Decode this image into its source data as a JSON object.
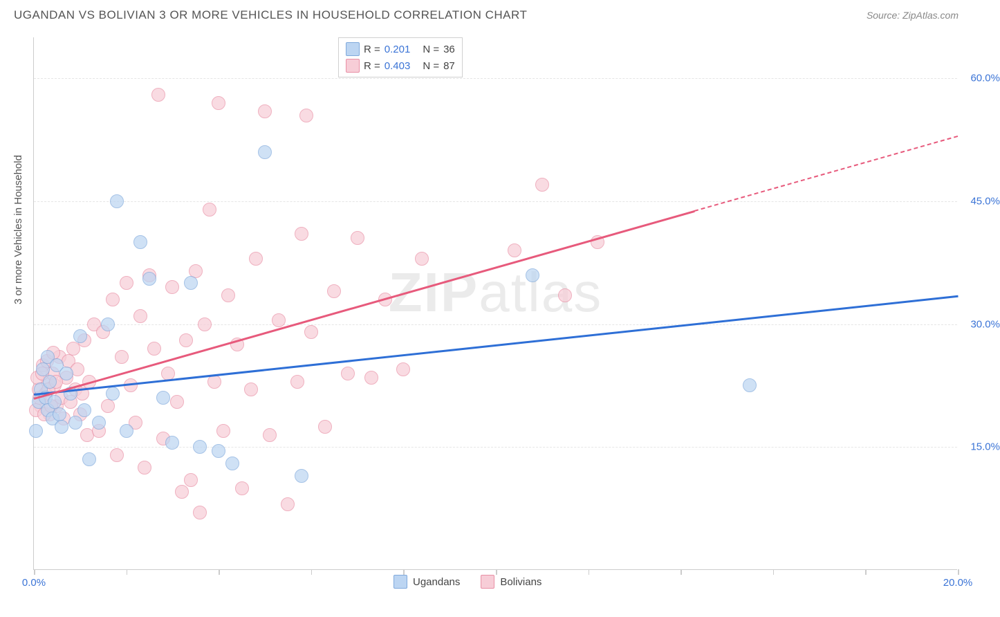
{
  "title": "UGANDAN VS BOLIVIAN 3 OR MORE VEHICLES IN HOUSEHOLD CORRELATION CHART",
  "source": "Source: ZipAtlas.com",
  "ylabel": "3 or more Vehicles in Household",
  "watermark": {
    "a": "ZIP",
    "b": "atlas"
  },
  "chart": {
    "type": "scatter",
    "xlim": [
      0,
      20
    ],
    "ylim": [
      0,
      65
    ],
    "x_ticks": [
      0,
      2,
      4,
      6,
      8,
      10,
      12,
      14,
      16,
      18,
      20
    ],
    "x_tick_labels": {
      "0": "0.0%",
      "20": "20.0%"
    },
    "y_gridlines": [
      15,
      30,
      45,
      60
    ],
    "y_tick_labels": {
      "15": "15.0%",
      "30": "30.0%",
      "45": "45.0%",
      "60": "60.0%"
    },
    "background_color": "#ffffff",
    "grid_color": "#e5e5e5",
    "axis_color": "#cccccc",
    "tick_label_color": "#3b74d6",
    "point_radius": 10,
    "series": [
      {
        "name": "Ugandans",
        "fill": "#bcd5f2",
        "stroke": "#7fa9dc",
        "opacity": 0.7,
        "r_value": "0.201",
        "n_value": "36",
        "trend": {
          "x0": 0,
          "y0": 21.5,
          "x1": 20,
          "y1": 33.5,
          "color": "#2e6fd6",
          "dash_after_x": 20
        },
        "points": [
          [
            0.1,
            20.5
          ],
          [
            0.15,
            22
          ],
          [
            0.2,
            24.5
          ],
          [
            0.25,
            21
          ],
          [
            0.3,
            19.5
          ],
          [
            0.3,
            26
          ],
          [
            0.35,
            23
          ],
          [
            0.4,
            18.5
          ],
          [
            0.45,
            20.5
          ],
          [
            0.5,
            25
          ],
          [
            0.55,
            19
          ],
          [
            0.6,
            17.5
          ],
          [
            0.7,
            24
          ],
          [
            0.8,
            21.5
          ],
          [
            0.9,
            18
          ],
          [
            1.0,
            28.5
          ],
          [
            1.1,
            19.5
          ],
          [
            1.2,
            13.5
          ],
          [
            1.4,
            18
          ],
          [
            1.6,
            30
          ],
          [
            1.7,
            21.5
          ],
          [
            1.8,
            45
          ],
          [
            2.0,
            17
          ],
          [
            2.3,
            40
          ],
          [
            2.5,
            35.5
          ],
          [
            2.8,
            21
          ],
          [
            3.0,
            15.5
          ],
          [
            3.4,
            35
          ],
          [
            3.6,
            15
          ],
          [
            4.0,
            14.5
          ],
          [
            4.3,
            13
          ],
          [
            5.0,
            51
          ],
          [
            5.8,
            11.5
          ],
          [
            10.8,
            36
          ],
          [
            15.5,
            22.5
          ],
          [
            0.05,
            17
          ]
        ]
      },
      {
        "name": "Bolivians",
        "fill": "#f7cdd7",
        "stroke": "#e98fa5",
        "opacity": 0.7,
        "r_value": "0.403",
        "n_value": "87",
        "trend": {
          "x0": 0,
          "y0": 21.0,
          "x1": 20,
          "y1": 53.0,
          "color": "#e75a7c",
          "dash_after_x": 14.3
        },
        "points": [
          [
            0.1,
            22
          ],
          [
            0.15,
            20
          ],
          [
            0.2,
            25
          ],
          [
            0.25,
            21.5
          ],
          [
            0.3,
            23
          ],
          [
            0.35,
            19
          ],
          [
            0.4,
            24
          ],
          [
            0.45,
            22.5
          ],
          [
            0.5,
            20
          ],
          [
            0.55,
            26
          ],
          [
            0.6,
            21
          ],
          [
            0.65,
            18.5
          ],
          [
            0.7,
            23.5
          ],
          [
            0.75,
            25.5
          ],
          [
            0.8,
            20.5
          ],
          [
            0.85,
            27
          ],
          [
            0.9,
            22
          ],
          [
            0.95,
            24.5
          ],
          [
            1.0,
            19
          ],
          [
            1.05,
            21.5
          ],
          [
            1.1,
            28
          ],
          [
            1.15,
            16.5
          ],
          [
            1.2,
            23
          ],
          [
            1.3,
            30
          ],
          [
            1.4,
            17
          ],
          [
            1.5,
            29
          ],
          [
            1.6,
            20
          ],
          [
            1.7,
            33
          ],
          [
            1.8,
            14
          ],
          [
            1.9,
            26
          ],
          [
            2.0,
            35
          ],
          [
            2.1,
            22.5
          ],
          [
            2.2,
            18
          ],
          [
            2.3,
            31
          ],
          [
            2.4,
            12.5
          ],
          [
            2.5,
            36
          ],
          [
            2.6,
            27
          ],
          [
            2.7,
            58
          ],
          [
            2.8,
            16
          ],
          [
            2.9,
            24
          ],
          [
            3.0,
            34.5
          ],
          [
            3.1,
            20.5
          ],
          [
            3.2,
            9.5
          ],
          [
            3.3,
            28
          ],
          [
            3.4,
            11
          ],
          [
            3.5,
            36.5
          ],
          [
            3.6,
            7
          ],
          [
            3.7,
            30
          ],
          [
            3.8,
            44
          ],
          [
            3.9,
            23
          ],
          [
            4.0,
            57
          ],
          [
            4.1,
            17
          ],
          [
            4.2,
            33.5
          ],
          [
            4.4,
            27.5
          ],
          [
            4.5,
            10
          ],
          [
            4.7,
            22
          ],
          [
            4.8,
            38
          ],
          [
            5.0,
            56
          ],
          [
            5.1,
            16.5
          ],
          [
            5.3,
            30.5
          ],
          [
            5.5,
            8
          ],
          [
            5.7,
            23
          ],
          [
            5.8,
            41
          ],
          [
            5.9,
            55.5
          ],
          [
            6.0,
            29
          ],
          [
            6.3,
            17.5
          ],
          [
            6.5,
            34
          ],
          [
            6.8,
            24
          ],
          [
            7.0,
            40.5
          ],
          [
            7.3,
            23.5
          ],
          [
            7.6,
            33
          ],
          [
            8.0,
            24.5
          ],
          [
            8.4,
            38
          ],
          [
            10.4,
            39
          ],
          [
            11.0,
            47
          ],
          [
            11.5,
            33.5
          ],
          [
            12.2,
            40
          ],
          [
            0.05,
            19.5
          ],
          [
            0.08,
            23.5
          ],
          [
            0.12,
            21
          ],
          [
            0.18,
            24
          ],
          [
            0.22,
            19
          ],
          [
            0.28,
            25.5
          ],
          [
            0.32,
            22
          ],
          [
            0.38,
            20
          ],
          [
            0.42,
            26.5
          ],
          [
            0.48,
            23
          ]
        ]
      }
    ]
  },
  "legend_bottom": [
    {
      "label": "Ugandans",
      "fill": "#bcd5f2",
      "stroke": "#7fa9dc"
    },
    {
      "label": "Bolivians",
      "fill": "#f7cdd7",
      "stroke": "#e98fa5"
    }
  ]
}
